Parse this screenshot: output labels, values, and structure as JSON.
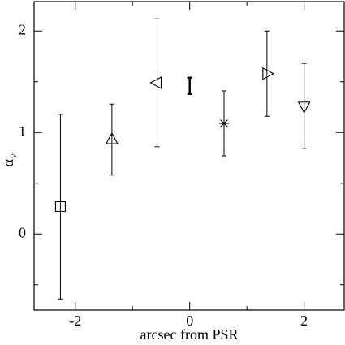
{
  "chart_data": {
    "type": "scatter",
    "x_label": "arcsec from PSR",
    "y_label": "α",
    "y_label_subscript": "ν",
    "x": [
      -2.26,
      -1.36,
      -0.57,
      0.0,
      0.6,
      1.35,
      2.0
    ],
    "values": [
      0.27,
      0.93,
      1.49,
      1.46,
      1.09,
      1.58,
      1.26
    ],
    "errors": [
      0.91,
      0.35,
      0.63,
      0.08,
      0.32,
      0.42,
      0.42
    ],
    "markers": [
      "square",
      "triangle-up",
      "triangle-left",
      "none",
      "asterisk",
      "triangle-right",
      "triangle-down"
    ],
    "color": "#000000",
    "xlim": [
      -2.72,
      2.7
    ],
    "ylim": [
      -0.75,
      2.29
    ],
    "xticks": [
      -2,
      0,
      2
    ],
    "yticks": [
      0,
      1,
      2
    ],
    "xminor": [
      -1,
      1
    ],
    "yminor": [
      -0.5,
      0.5,
      1.5
    ]
  }
}
